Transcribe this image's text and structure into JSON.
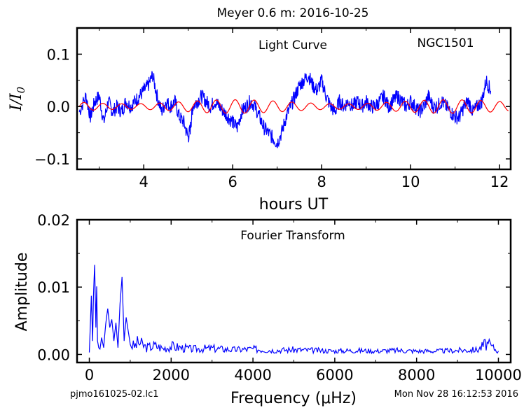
{
  "title": "Meyer 0.6 m:  2016-10-25",
  "footer_left": "pjmo161025-02.lc1",
  "footer_right": "Mon Nov 28 16:12:53 2016",
  "chart_data": [
    {
      "type": "line",
      "panel": "light-curve",
      "annotation": "Light Curve",
      "object": "NGC1501",
      "xlabel": "hours UT",
      "ylabel": "I/I0",
      "xlim": [
        2.5,
        12.25
      ],
      "ylim": [
        -0.12,
        0.15
      ],
      "xticks": [
        4,
        6,
        8,
        10,
        12
      ],
      "yticks": [
        -0.1,
        0.0,
        0.1
      ],
      "xtick_labels": [
        "4",
        "6",
        "8",
        "10",
        "12"
      ],
      "ytick_labels": [
        "−0.1",
        "0.0",
        "0.1"
      ],
      "series": [
        {
          "color": "#0000ff",
          "x": [
            2.55,
            2.7,
            2.8,
            2.9,
            3.0,
            3.1,
            3.2,
            3.3,
            3.4,
            3.5,
            3.6,
            3.7,
            3.8,
            3.9,
            4.0,
            4.1,
            4.2,
            4.3,
            4.4,
            4.5,
            4.6,
            4.7,
            4.8,
            4.9,
            5.0,
            5.05,
            5.1,
            5.2,
            5.3,
            5.4,
            5.5,
            5.6,
            5.7,
            5.8,
            5.9,
            6.0,
            6.1,
            6.2,
            6.3,
            6.4,
            6.5,
            6.6,
            6.7,
            6.8,
            6.9,
            7.0,
            7.1,
            7.2,
            7.3,
            7.4,
            7.5,
            7.6,
            7.7,
            7.8,
            7.9,
            8.0,
            8.1,
            8.2,
            8.3,
            8.4,
            8.5,
            8.6,
            8.7,
            8.8,
            8.9,
            9.0,
            9.1,
            9.2,
            9.3,
            9.4,
            9.5,
            9.6,
            9.7,
            9.8,
            9.9,
            10.0,
            10.1,
            10.2,
            10.3,
            10.4,
            10.5,
            10.6,
            10.7,
            10.8,
            10.9,
            11.0,
            11.1,
            11.2,
            11.3,
            11.4,
            11.5,
            11.6,
            11.7,
            11.8
          ],
          "y": [
            -0.01,
            0.02,
            -0.02,
            0.01,
            0.02,
            -0.03,
            0.01,
            -0.01,
            0.0,
            -0.01,
            0.01,
            0.0,
            0.01,
            0.02,
            0.03,
            0.04,
            0.06,
            0.02,
            -0.01,
            0.01,
            0.0,
            0.01,
            -0.02,
            -0.03,
            -0.06,
            -0.04,
            0.0,
            0.01,
            0.02,
            0.01,
            0.0,
            0.01,
            0.0,
            -0.01,
            -0.02,
            -0.03,
            -0.04,
            -0.01,
            0.0,
            0.01,
            0.0,
            -0.02,
            -0.04,
            -0.05,
            -0.06,
            -0.07,
            -0.05,
            -0.02,
            0.0,
            0.02,
            0.04,
            0.05,
            0.06,
            0.04,
            0.03,
            0.05,
            0.02,
            0.0,
            -0.01,
            0.01,
            0.0,
            0.01,
            0.0,
            0.01,
            0.0,
            0.01,
            0.0,
            0.0,
            0.01,
            0.02,
            0.0,
            0.01,
            0.02,
            0.01,
            0.0,
            0.01,
            0.0,
            -0.01,
            0.0,
            0.02,
            0.0,
            0.0,
            0.01,
            0.0,
            -0.01,
            -0.02,
            -0.02,
            0.0,
            0.01,
            -0.01,
            0.0,
            0.01,
            0.05,
            0.03
          ]
        },
        {
          "color": "#ff0000",
          "model": "sinusoid",
          "amplitude": 0.013,
          "period_hours": 0.425
        }
      ]
    },
    {
      "type": "line",
      "panel": "fourier-transform",
      "annotation": "Fourier Transform",
      "xlabel": "Frequency (μHz)",
      "ylabel": "Amplitude",
      "xlim": [
        -300,
        10300
      ],
      "ylim": [
        -0.0012,
        0.02
      ],
      "xticks": [
        0,
        2000,
        4000,
        6000,
        8000,
        10000
      ],
      "yticks": [
        0.0,
        0.01,
        0.02
      ],
      "xtick_labels": [
        "0",
        "2000",
        "4000",
        "6000",
        "8000",
        "10000"
      ],
      "ytick_labels": [
        "0.00",
        "0.01",
        "0.02"
      ],
      "series": [
        {
          "color": "#0000ff",
          "x": [
            0,
            50,
            80,
            100,
            130,
            160,
            180,
            200,
            230,
            260,
            300,
            350,
            400,
            450,
            500,
            550,
            600,
            650,
            700,
            750,
            800,
            850,
            900,
            1000,
            1100,
            1200,
            1400,
            1600,
            1800,
            2000,
            2500,
            3000,
            3500,
            4000,
            4500,
            5000,
            5500,
            6000,
            6500,
            7000,
            7500,
            8000,
            8500,
            9000,
            9500,
            9700,
            10000
          ],
          "y": [
            0.0003,
            0.0087,
            0.002,
            0.0086,
            0.0133,
            0.004,
            0.0101,
            0.002,
            0.001,
            0.0008,
            0.0025,
            0.001,
            0.0045,
            0.0068,
            0.004,
            0.0052,
            0.002,
            0.0047,
            0.001,
            0.0075,
            0.0115,
            0.002,
            0.0055,
            0.0015,
            0.0012,
            0.0018,
            0.001,
            0.0013,
            0.0009,
            0.0012,
            0.0008,
            0.0009,
            0.0007,
            0.0008,
            0.0006,
            0.0007,
            0.0006,
            0.0005,
            0.0006,
            0.0005,
            0.0006,
            0.0005,
            0.0005,
            0.0006,
            0.0007,
            0.0016,
            0.0005
          ]
        }
      ]
    }
  ]
}
